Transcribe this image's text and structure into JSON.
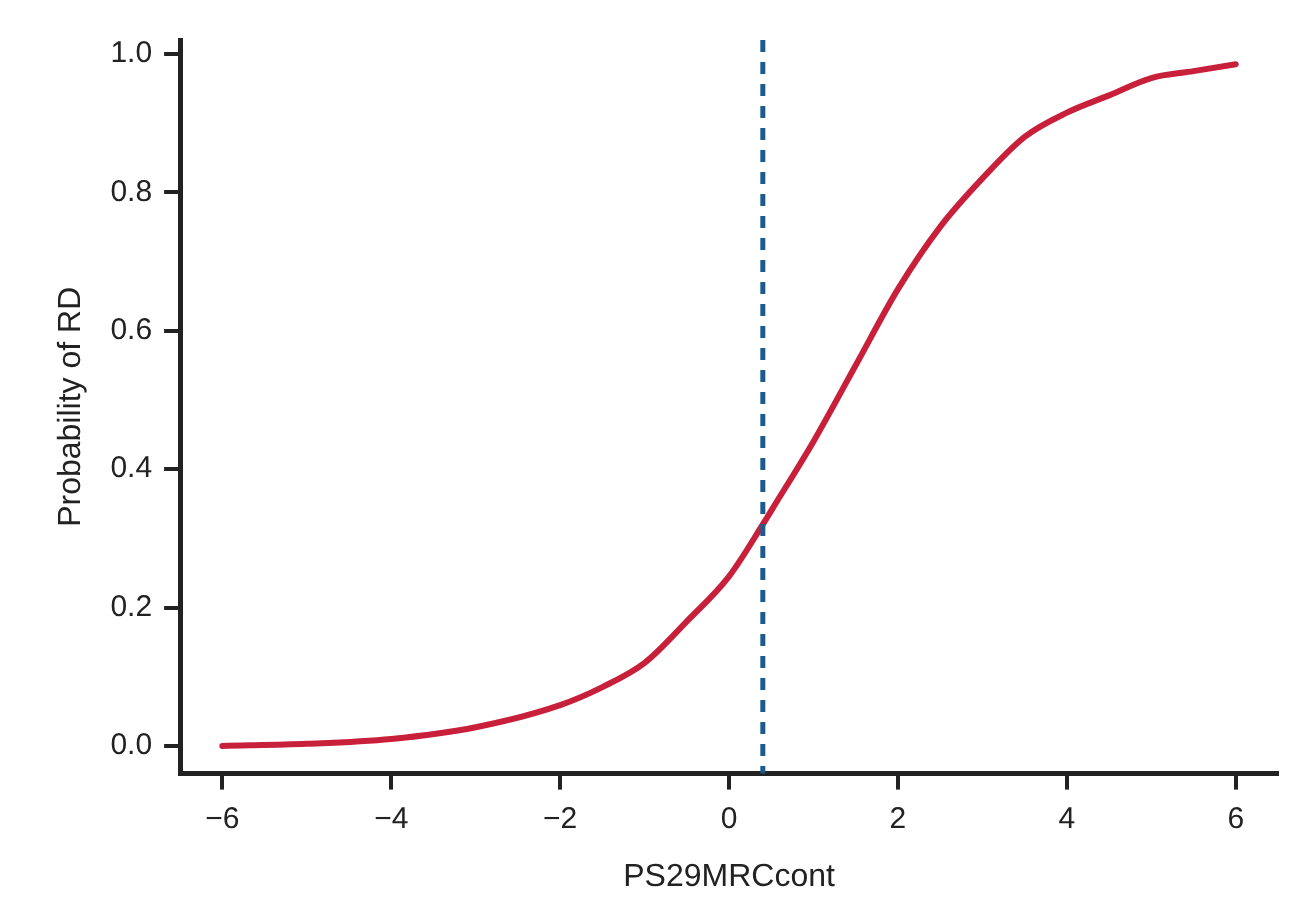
{
  "chart_data": {
    "type": "line",
    "xlabel": "PS29MRCcont",
    "ylabel": "Probability of RD",
    "x": [
      -6,
      -5,
      -4,
      -3,
      -2,
      -1.5,
      -1,
      -0.5,
      0,
      0.4,
      0.5,
      1,
      1.5,
      2,
      2.5,
      3,
      3.5,
      4,
      4.5,
      5,
      5.5,
      6
    ],
    "series": [
      {
        "color": "#c8203a",
        "values": [
          0.0,
          0.003,
          0.01,
          0.027,
          0.059,
          0.085,
          0.12,
          0.18,
          0.245,
          0.32,
          0.34,
          0.44,
          0.55,
          0.66,
          0.75,
          0.82,
          0.88,
          0.915,
          0.94,
          0.965,
          0.975,
          0.985
        ]
      }
    ],
    "xlim": [
      -6.5,
      6.5
    ],
    "xticks": [
      {
        "value": -6,
        "label": "−6"
      },
      {
        "value": -4,
        "label": "−4"
      },
      {
        "value": -2,
        "label": "−2"
      },
      0,
      2,
      4,
      6
    ],
    "ylim": [
      -0.04,
      1.02
    ],
    "yticks": [
      {
        "value": 0,
        "label": "0.0"
      },
      0.2,
      0.4,
      0.6,
      0.8,
      {
        "value": 1,
        "label": "1.0"
      }
    ],
    "ref_lines": [
      {
        "axis": "x",
        "value": 0.4,
        "color": "#1f5a8c",
        "line_style": "dashed"
      }
    ],
    "grid": false,
    "legend": false,
    "marker": "none",
    "line_style": "solid"
  }
}
